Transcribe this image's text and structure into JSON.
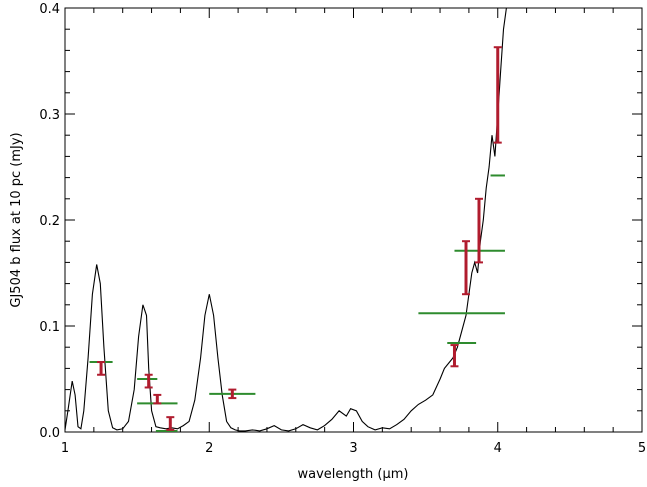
{
  "chart_data": {
    "type": "line",
    "title": "",
    "xlabel": "wavelength (μm)",
    "ylabel": "GJ504 b flux at 10 pc (mJy)",
    "xlim": [
      1,
      5
    ],
    "ylim": [
      0,
      0.4
    ],
    "x_ticks": [
      1,
      2,
      3,
      4,
      5
    ],
    "x_tick_labels": [
      "1",
      "2",
      "3",
      "4",
      "5"
    ],
    "y_ticks": [
      0.0,
      0.1,
      0.2,
      0.3,
      0.4
    ],
    "y_tick_labels": [
      "0.0",
      "0.1",
      "0.2",
      "0.3",
      "0.4"
    ],
    "grid": false,
    "colors": {
      "model": "#000000",
      "photometry": "#b01c2e",
      "band_flux": "#2e8b2e"
    },
    "model_spectrum": {
      "x": [
        1.0,
        1.02,
        1.05,
        1.07,
        1.09,
        1.11,
        1.13,
        1.16,
        1.19,
        1.22,
        1.245,
        1.27,
        1.3,
        1.33,
        1.36,
        1.4,
        1.44,
        1.48,
        1.51,
        1.54,
        1.565,
        1.58,
        1.6,
        1.63,
        1.66,
        1.7,
        1.74,
        1.78,
        1.82,
        1.86,
        1.9,
        1.94,
        1.97,
        2.0,
        2.03,
        2.06,
        2.09,
        2.12,
        2.15,
        2.18,
        2.21,
        2.25,
        2.3,
        2.35,
        2.4,
        2.45,
        2.5,
        2.55,
        2.6,
        2.65,
        2.7,
        2.75,
        2.8,
        2.85,
        2.9,
        2.95,
        2.98,
        3.02,
        3.06,
        3.1,
        3.15,
        3.2,
        3.25,
        3.3,
        3.35,
        3.4,
        3.45,
        3.5,
        3.55,
        3.6,
        3.63,
        3.66,
        3.69,
        3.72,
        3.75,
        3.78,
        3.8,
        3.82,
        3.84,
        3.86,
        3.88,
        3.9,
        3.92,
        3.94,
        3.96,
        3.98,
        4.0,
        4.02,
        4.04,
        4.06,
        4.08
      ],
      "y": [
        0.002,
        0.02,
        0.048,
        0.035,
        0.005,
        0.003,
        0.02,
        0.07,
        0.13,
        0.158,
        0.14,
        0.08,
        0.02,
        0.004,
        0.002,
        0.003,
        0.01,
        0.04,
        0.09,
        0.12,
        0.11,
        0.06,
        0.02,
        0.005,
        0.004,
        0.003,
        0.004,
        0.003,
        0.006,
        0.01,
        0.03,
        0.07,
        0.11,
        0.13,
        0.11,
        0.07,
        0.035,
        0.01,
        0.004,
        0.002,
        0.001,
        0.001,
        0.002,
        0.001,
        0.003,
        0.006,
        0.002,
        0.001,
        0.003,
        0.007,
        0.004,
        0.002,
        0.006,
        0.012,
        0.02,
        0.015,
        0.022,
        0.02,
        0.01,
        0.005,
        0.002,
        0.004,
        0.003,
        0.007,
        0.012,
        0.02,
        0.026,
        0.03,
        0.035,
        0.05,
        0.06,
        0.065,
        0.07,
        0.08,
        0.095,
        0.11,
        0.13,
        0.15,
        0.16,
        0.15,
        0.18,
        0.2,
        0.23,
        0.25,
        0.28,
        0.26,
        0.3,
        0.34,
        0.38,
        0.4,
        0.42
      ]
    },
    "photometry": {
      "x": [
        1.25,
        1.58,
        1.64,
        1.73,
        2.16,
        3.7,
        3.78,
        3.87,
        4.0
      ],
      "y": [
        0.06,
        0.048,
        0.031,
        0.008,
        0.036,
        0.072,
        0.155,
        0.19,
        0.318
      ],
      "yerr_low": [
        0.006,
        0.006,
        0.004,
        0.006,
        0.004,
        0.01,
        0.025,
        0.03,
        0.045
      ],
      "yerr_high": [
        0.006,
        0.006,
        0.004,
        0.006,
        0.004,
        0.01,
        0.025,
        0.03,
        0.045
      ]
    },
    "band_flux": {
      "x_low": [
        1.17,
        1.5,
        1.5,
        1.63,
        2.0,
        3.45,
        3.65,
        3.7,
        3.95
      ],
      "x_high": [
        1.33,
        1.64,
        1.78,
        1.78,
        2.32,
        4.05,
        3.85,
        4.05,
        4.05
      ],
      "y": [
        0.066,
        0.05,
        0.027,
        0.001,
        0.036,
        0.112,
        0.084,
        0.171,
        0.242
      ]
    }
  }
}
